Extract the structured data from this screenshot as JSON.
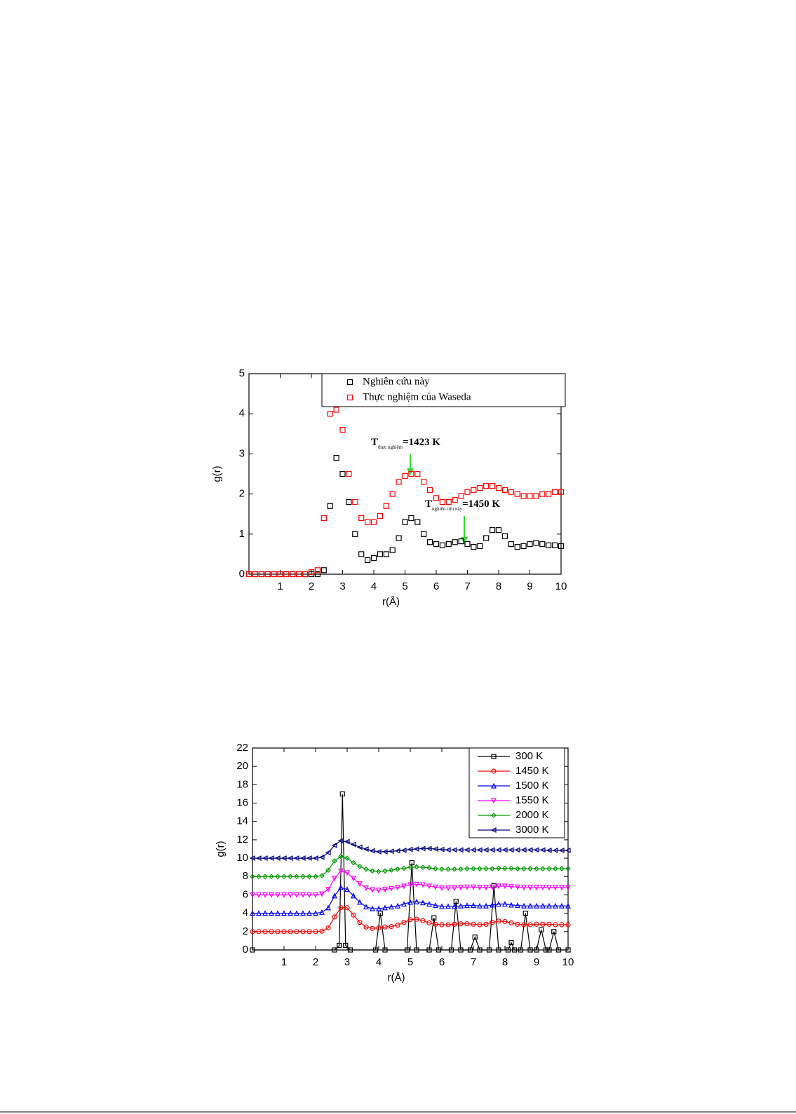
{
  "chart_data": [
    {
      "type": "scatter",
      "xlabel": "r(Å)",
      "ylabel": "g(r)",
      "xlim": [
        0,
        10
      ],
      "ylim": [
        0,
        5
      ],
      "xticks": [
        1,
        2,
        3,
        4,
        5,
        6,
        7,
        8,
        9,
        10
      ],
      "yticks": [
        0,
        1,
        2,
        3,
        4,
        5
      ],
      "legend": "upper right",
      "x": [
        0,
        0.2,
        0.4,
        0.6,
        0.8,
        1,
        1.2,
        1.4,
        1.6,
        1.8,
        2,
        2.2,
        2.4,
        2.6,
        2.8,
        3,
        3.2,
        3.4,
        3.6,
        3.8,
        4,
        4.2,
        4.4,
        4.6,
        4.8,
        5,
        5.2,
        5.4,
        5.6,
        5.8,
        6,
        6.2,
        6.4,
        6.6,
        6.8,
        7,
        7.2,
        7.4,
        7.6,
        7.8,
        8,
        8.2,
        8.4,
        8.6,
        8.8,
        9,
        9.2,
        9.4,
        9.6,
        9.8,
        10
      ],
      "series": [
        {
          "name": "Nghiên cứu này",
          "color": "#000000",
          "marker": "square",
          "values": [
            0,
            0,
            0,
            0,
            0,
            0,
            0,
            0,
            0,
            0,
            0,
            0,
            0.1,
            1.7,
            2.9,
            2.5,
            1.8,
            1.0,
            0.5,
            0.35,
            0.4,
            0.5,
            0.5,
            0.6,
            0.9,
            1.3,
            1.4,
            1.3,
            1.0,
            0.8,
            0.75,
            0.72,
            0.75,
            0.8,
            0.82,
            0.75,
            0.68,
            0.7,
            0.9,
            1.1,
            1.1,
            0.95,
            0.75,
            0.68,
            0.7,
            0.75,
            0.78,
            0.75,
            0.72,
            0.72,
            0.7
          ]
        },
        {
          "name": "Thực nghiệm của Waseda",
          "color": "#ff0000",
          "marker": "square",
          "values": [
            0,
            0,
            0,
            0,
            0,
            0,
            0,
            0,
            0,
            0,
            0.05,
            0.1,
            1.4,
            4.0,
            4.1,
            3.6,
            2.5,
            1.8,
            1.4,
            1.3,
            1.3,
            1.45,
            1.7,
            2.0,
            2.3,
            2.45,
            2.5,
            2.5,
            2.3,
            2.1,
            1.9,
            1.8,
            1.8,
            1.85,
            1.95,
            2.05,
            2.1,
            2.15,
            2.2,
            2.2,
            2.15,
            2.1,
            2.05,
            2.0,
            1.95,
            1.95,
            1.95,
            2.0,
            2.0,
            2.05,
            2.05
          ]
        }
      ],
      "annotations": [
        {
          "text": "T",
          "subscript": "thực nghiệm",
          "suffix": "=1423 K"
        },
        {
          "text": "T",
          "subscript": "nghiên cứu này",
          "suffix": "=1450 K"
        }
      ]
    },
    {
      "type": "line",
      "xlabel": "r(Å)",
      "ylabel": "g(r)",
      "xlim": [
        0,
        10
      ],
      "ylim": [
        0,
        22
      ],
      "xticks": [
        1,
        2,
        3,
        4,
        5,
        6,
        7,
        8,
        9,
        10
      ],
      "yticks": [
        0,
        2,
        4,
        6,
        8,
        10,
        12,
        14,
        16,
        18,
        20,
        22
      ],
      "legend": "upper right",
      "x": [
        0,
        0.2,
        0.4,
        0.6,
        0.8,
        1,
        1.2,
        1.4,
        1.6,
        1.8,
        2,
        2.2,
        2.4,
        2.6,
        2.8,
        3,
        3.2,
        3.4,
        3.6,
        3.8,
        4,
        4.2,
        4.4,
        4.6,
        4.8,
        5,
        5.2,
        5.4,
        5.6,
        5.8,
        6,
        6.2,
        6.4,
        6.6,
        6.8,
        7,
        7.2,
        7.4,
        7.6,
        7.8,
        8,
        8.2,
        8.4,
        8.6,
        8.8,
        9,
        9.2,
        9.4,
        9.6,
        9.8,
        10
      ],
      "series": [
        {
          "name": "300 K",
          "color": "#000000",
          "marker": "square",
          "x": [
            0,
            2.6,
            2.75,
            2.85,
            2.95,
            3.1,
            3.9,
            4.05,
            4.2,
            4.9,
            5.05,
            5.2,
            5.6,
            5.75,
            5.9,
            6.3,
            6.45,
            6.6,
            6.9,
            7.05,
            7.2,
            7.5,
            7.65,
            7.8,
            8.1,
            8.2,
            8.3,
            8.5,
            8.65,
            8.8,
            9.0,
            9.15,
            9.3,
            9.4,
            9.55,
            9.7,
            10
          ],
          "values": [
            0,
            0,
            0.5,
            17,
            0.5,
            0,
            0,
            4,
            0,
            0,
            9.5,
            0,
            0,
            3.5,
            0,
            0,
            5.3,
            0,
            0,
            1.4,
            0,
            0,
            7,
            0,
            0,
            0.8,
            0,
            0,
            4,
            0,
            0,
            2.2,
            0,
            0,
            2,
            0,
            0
          ]
        },
        {
          "name": "1450 K",
          "color": "#ff0000",
          "marker": "circle",
          "values": [
            2,
            2,
            2,
            2,
            2,
            2,
            2,
            2,
            2,
            2,
            2,
            2.05,
            2.4,
            3.6,
            4.6,
            4.6,
            3.8,
            3.0,
            2.5,
            2.35,
            2.4,
            2.5,
            2.55,
            2.7,
            3.0,
            3.3,
            3.35,
            3.2,
            2.95,
            2.8,
            2.75,
            2.75,
            2.8,
            2.85,
            2.85,
            2.8,
            2.75,
            2.8,
            3.0,
            3.15,
            3.1,
            2.95,
            2.8,
            2.75,
            2.75,
            2.8,
            2.8,
            2.8,
            2.75,
            2.75,
            2.75
          ]
        },
        {
          "name": "1500 K",
          "color": "#0000ff",
          "marker": "triangle-up",
          "values": [
            4,
            4,
            4,
            4,
            4,
            4,
            4,
            4,
            4,
            4,
            4,
            4.1,
            4.6,
            5.9,
            6.8,
            6.6,
            5.9,
            5.2,
            4.7,
            4.5,
            4.5,
            4.6,
            4.7,
            4.8,
            5.0,
            5.2,
            5.25,
            5.15,
            5.0,
            4.85,
            4.75,
            4.75,
            4.75,
            4.8,
            4.85,
            4.85,
            4.8,
            4.8,
            4.9,
            5.0,
            5.0,
            4.9,
            4.85,
            4.8,
            4.8,
            4.8,
            4.8,
            4.8,
            4.8,
            4.8,
            4.8
          ]
        },
        {
          "name": "1550 K",
          "color": "#ff00ff",
          "marker": "triangle-down",
          "values": [
            6,
            6,
            6,
            6,
            6,
            6,
            6,
            6,
            6,
            6,
            6,
            6.1,
            6.6,
            7.8,
            8.6,
            8.4,
            7.8,
            7.2,
            6.75,
            6.55,
            6.5,
            6.6,
            6.7,
            6.8,
            6.95,
            7.1,
            7.15,
            7.1,
            6.95,
            6.85,
            6.75,
            6.75,
            6.75,
            6.8,
            6.85,
            6.85,
            6.8,
            6.8,
            6.85,
            6.95,
            6.95,
            6.9,
            6.85,
            6.8,
            6.8,
            6.8,
            6.8,
            6.8,
            6.8,
            6.8,
            6.8
          ]
        },
        {
          "name": "2000 K",
          "color": "#009900",
          "marker": "diamond",
          "values": [
            8,
            8,
            8,
            8,
            8,
            8,
            8,
            8,
            8,
            8,
            8,
            8.1,
            8.7,
            9.7,
            10.2,
            10.0,
            9.5,
            9.1,
            8.8,
            8.6,
            8.55,
            8.6,
            8.7,
            8.8,
            8.9,
            9.0,
            9.05,
            9.0,
            8.95,
            8.85,
            8.8,
            8.8,
            8.8,
            8.8,
            8.85,
            8.85,
            8.85,
            8.85,
            8.85,
            8.9,
            8.9,
            8.9,
            8.85,
            8.85,
            8.85,
            8.85,
            8.85,
            8.85,
            8.85,
            8.85,
            8.85
          ]
        },
        {
          "name": "3000 K",
          "color": "#000080",
          "marker": "triangle-left",
          "values": [
            10,
            10,
            10,
            10,
            10,
            10,
            10,
            10,
            10,
            10,
            10,
            10.1,
            10.6,
            11.4,
            11.9,
            11.8,
            11.5,
            11.2,
            11.0,
            10.8,
            10.7,
            10.7,
            10.75,
            10.8,
            10.85,
            10.95,
            11.0,
            11.05,
            11.05,
            11.0,
            10.95,
            10.9,
            10.9,
            10.9,
            10.9,
            10.9,
            10.9,
            10.9,
            10.9,
            10.9,
            10.9,
            10.9,
            10.9,
            10.9,
            10.9,
            10.9,
            10.9,
            10.85,
            10.85,
            10.85,
            10.85
          ]
        }
      ]
    }
  ]
}
